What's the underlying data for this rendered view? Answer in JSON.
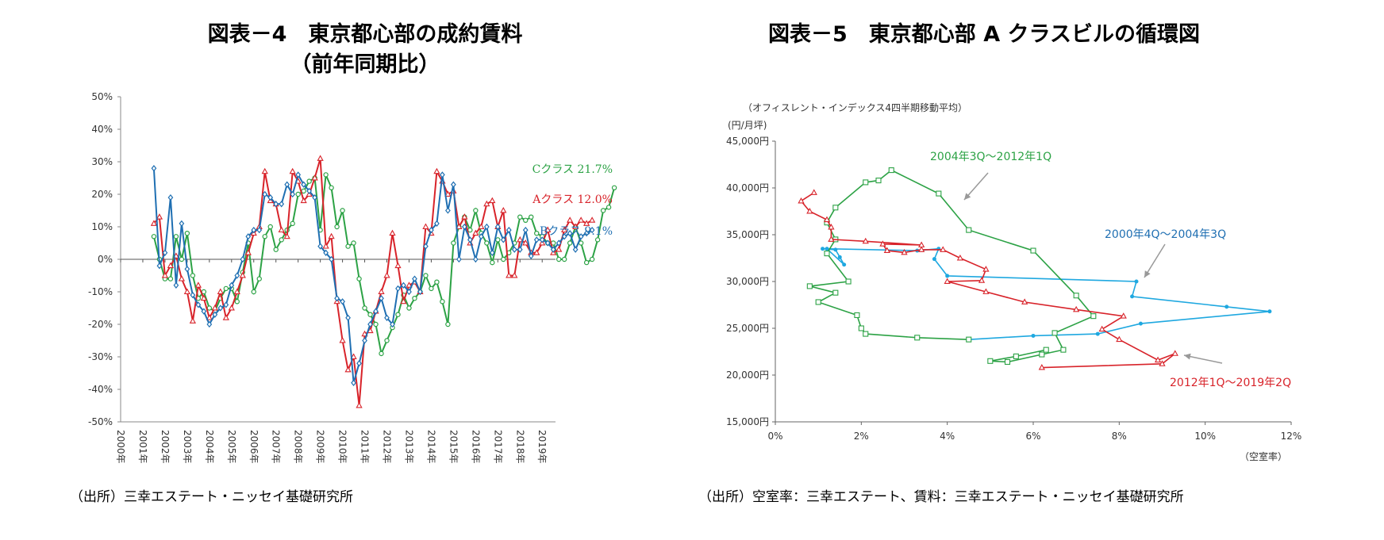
{
  "left": {
    "title_line1": "図表－4　東京都心部の成約賃料",
    "title_line2": "（前年同期比）",
    "source": "（出所）三幸エステート・ニッセイ基礎研究所"
  },
  "right": {
    "title": "図表－5　東京都心部 A クラスビルの循環図",
    "source": "（出所）空室率：三幸エステート、賃料：三幸エステート・ニッセイ基礎研究所"
  },
  "colors": {
    "c": "#2ca245",
    "a": "#d8232a",
    "b": "#1f6fb2",
    "cyan": "#1fa8e0",
    "grey": "#999999"
  },
  "chart_data": [
    {
      "type": "line",
      "ylim": [
        -0.5,
        0.5
      ],
      "yticks": [
        "50%",
        "40%",
        "30%",
        "20%",
        "10%",
        "0%",
        "-10%",
        "-20%",
        "-30%",
        "-40%",
        "-50%"
      ],
      "xticks": [
        "2000年",
        "2001年",
        "2002年",
        "2003年",
        "2004年",
        "2005年",
        "2006年",
        "2007年",
        "2008年",
        "2009年",
        "2010年",
        "2011年",
        "2012年",
        "2013年",
        "2014年",
        "2015年",
        "2016年",
        "2017年",
        "2018年",
        "2019年"
      ],
      "x_start": 2000,
      "series": [
        {
          "key": "c",
          "label": "Cクラス 21.7%",
          "marker": "circle",
          "values": [
            0.07,
            0.0,
            -0.06,
            -0.06,
            0.07,
            0.0,
            0.08,
            -0.05,
            -0.12,
            -0.1,
            -0.15,
            -0.16,
            -0.12,
            -0.09,
            -0.09,
            -0.13,
            -0.04,
            0.05,
            -0.1,
            -0.06,
            0.07,
            0.1,
            0.03,
            0.06,
            0.09,
            0.11,
            0.2,
            0.21,
            0.24,
            0.25,
            0.09,
            0.26,
            0.22,
            0.1,
            0.15,
            0.04,
            0.05,
            -0.06,
            -0.15,
            -0.17,
            -0.2,
            -0.29,
            -0.25,
            -0.21,
            -0.17,
            -0.11,
            -0.15,
            -0.12,
            -0.1,
            -0.05,
            -0.09,
            -0.07,
            -0.13,
            -0.2,
            0.05,
            0.1,
            0.13,
            0.09,
            0.15,
            0.08,
            0.05,
            -0.01,
            0.06,
            0.0,
            0.02,
            0.05,
            0.13,
            0.12,
            0.13,
            0.08,
            0.07,
            0.05,
            0.05,
            0.0,
            0.0,
            0.05,
            0.1,
            0.05,
            -0.01,
            0.0,
            0.06,
            0.15,
            0.16,
            0.22
          ]
        },
        {
          "key": "a",
          "label": "Aクラス 12.0%",
          "marker": "triangle",
          "values": [
            0.11,
            0.13,
            -0.05,
            -0.02,
            0.01,
            -0.06,
            -0.1,
            -0.19,
            -0.08,
            -0.12,
            -0.18,
            -0.15,
            -0.1,
            -0.18,
            -0.15,
            -0.1,
            -0.05,
            0.02,
            0.08,
            0.1,
            0.27,
            0.18,
            0.17,
            0.09,
            0.07,
            0.27,
            0.24,
            0.18,
            0.2,
            0.25,
            0.31,
            0.04,
            0.07,
            -0.13,
            -0.25,
            -0.34,
            -0.3,
            -0.45,
            -0.23,
            -0.22,
            -0.16,
            -0.1,
            -0.05,
            0.08,
            -0.02,
            -0.13,
            -0.08,
            -0.07,
            -0.1,
            0.1,
            0.08,
            0.27,
            0.24,
            0.2,
            0.21,
            0.1,
            0.13,
            0.05,
            0.08,
            0.1,
            0.17,
            0.18,
            0.1,
            0.15,
            -0.05,
            -0.05,
            0.06,
            0.05,
            0.02,
            0.02,
            0.05,
            0.09,
            0.02,
            0.03,
            0.09,
            0.12,
            0.1,
            0.12,
            0.11,
            0.12
          ]
        },
        {
          "key": "b",
          "label": "Bクラス 9.1%",
          "marker": "diamond",
          "values": [
            0.28,
            -0.02,
            0.02,
            0.19,
            -0.08,
            0.11,
            -0.03,
            -0.11,
            -0.14,
            -0.16,
            -0.2,
            -0.17,
            -0.15,
            -0.14,
            -0.08,
            -0.05,
            0.0,
            0.07,
            0.09,
            0.09,
            0.2,
            0.19,
            0.17,
            0.17,
            0.23,
            0.2,
            0.26,
            0.23,
            0.21,
            0.19,
            0.04,
            0.02,
            0.0,
            -0.12,
            -0.13,
            -0.18,
            -0.38,
            -0.32,
            -0.25,
            -0.2,
            -0.16,
            -0.12,
            -0.18,
            -0.2,
            -0.09,
            -0.08,
            -0.1,
            -0.06,
            -0.1,
            0.04,
            0.09,
            0.11,
            0.26,
            0.15,
            0.23,
            0.0,
            0.1,
            0.06,
            0.0,
            0.07,
            0.1,
            0.02,
            0.1,
            0.06,
            0.09,
            0.03,
            0.03,
            0.09,
            0.01,
            0.06,
            0.06,
            0.05,
            0.03,
            0.05,
            0.07,
            0.08,
            0.03,
            0.07,
            0.08,
            0.09
          ]
        }
      ]
    },
    {
      "type": "line",
      "note": "（オフィスレント・インデックス4四半期移動平均）",
      "ylabel": "(円/月坪)",
      "xlabel": "（空室率）",
      "xlim": [
        0,
        12
      ],
      "ylim": [
        15000,
        45000
      ],
      "xticks": [
        "0%",
        "2%",
        "4%",
        "6%",
        "8%",
        "10%",
        "12%"
      ],
      "yticks": [
        "15,000円",
        "20,000円",
        "25,000円",
        "30,000円",
        "35,000円",
        "40,000円",
        "45,000円"
      ],
      "series": [
        {
          "key": "cyan",
          "name": "2000年4Q～2004年3Q",
          "marker": "star",
          "points": [
            [
              1.1,
              33500
            ],
            [
              1.4,
              33400
            ],
            [
              1.5,
              32600
            ],
            [
              1.6,
              31800
            ],
            [
              1.2,
              33500
            ],
            [
              3.3,
              33300
            ],
            [
              3.8,
              33500
            ],
            [
              3.7,
              32400
            ],
            [
              4.0,
              30600
            ],
            [
              8.4,
              30000
            ],
            [
              8.3,
              28400
            ],
            [
              10.5,
              27300
            ],
            [
              11.5,
              26800
            ],
            [
              8.5,
              25500
            ],
            [
              7.5,
              24400
            ],
            [
              6.0,
              24200
            ],
            [
              4.5,
              23800
            ]
          ]
        },
        {
          "key": "c",
          "name": "2004年3Q～2012年1Q",
          "marker": "square",
          "points": [
            [
              4.5,
              23800
            ],
            [
              3.3,
              24000
            ],
            [
              2.1,
              24400
            ],
            [
              2.0,
              25000
            ],
            [
              1.9,
              26400
            ],
            [
              1.0,
              27800
            ],
            [
              1.4,
              28800
            ],
            [
              0.8,
              29500
            ],
            [
              1.7,
              30000
            ],
            [
              1.2,
              33000
            ],
            [
              1.4,
              34500
            ],
            [
              1.2,
              36300
            ],
            [
              1.4,
              37900
            ],
            [
              2.1,
              40600
            ],
            [
              2.4,
              40800
            ],
            [
              2.7,
              41900
            ],
            [
              3.8,
              39400
            ],
            [
              4.5,
              35500
            ],
            [
              6.0,
              33300
            ],
            [
              7.0,
              28500
            ],
            [
              7.4,
              26300
            ],
            [
              6.5,
              24500
            ],
            [
              6.7,
              22700
            ],
            [
              6.2,
              22200
            ],
            [
              5.4,
              21400
            ],
            [
              5.0,
              21500
            ],
            [
              5.6,
              22000
            ],
            [
              6.3,
              22700
            ]
          ]
        },
        {
          "key": "a",
          "name": "2012年1Q～2019年2Q",
          "marker": "triangle",
          "points": [
            [
              6.2,
              20800
            ],
            [
              9.0,
              21200
            ],
            [
              9.3,
              22300
            ],
            [
              8.9,
              21600
            ],
            [
              8.0,
              23800
            ],
            [
              7.6,
              24900
            ],
            [
              8.1,
              26300
            ],
            [
              7.0,
              27000
            ],
            [
              5.8,
              27800
            ],
            [
              4.9,
              28900
            ],
            [
              4.0,
              30000
            ],
            [
              4.8,
              30100
            ],
            [
              4.9,
              31300
            ],
            [
              4.3,
              32500
            ],
            [
              3.9,
              33400
            ],
            [
              3.4,
              33400
            ],
            [
              3.0,
              33100
            ],
            [
              2.6,
              33300
            ],
            [
              2.5,
              34000
            ],
            [
              3.4,
              33900
            ],
            [
              2.1,
              34300
            ],
            [
              1.3,
              34500
            ],
            [
              1.3,
              35800
            ],
            [
              1.2,
              36600
            ],
            [
              0.8,
              37500
            ],
            [
              0.6,
              38600
            ],
            [
              0.9,
              39500
            ]
          ]
        }
      ],
      "annotations": [
        {
          "text": "2004年3Q～2012年1Q",
          "color_key": "c"
        },
        {
          "text": "2000年4Q～2004年3Q",
          "color_key": "b"
        },
        {
          "text": "2012年1Q～2019年2Q",
          "color_key": "a"
        }
      ]
    }
  ]
}
